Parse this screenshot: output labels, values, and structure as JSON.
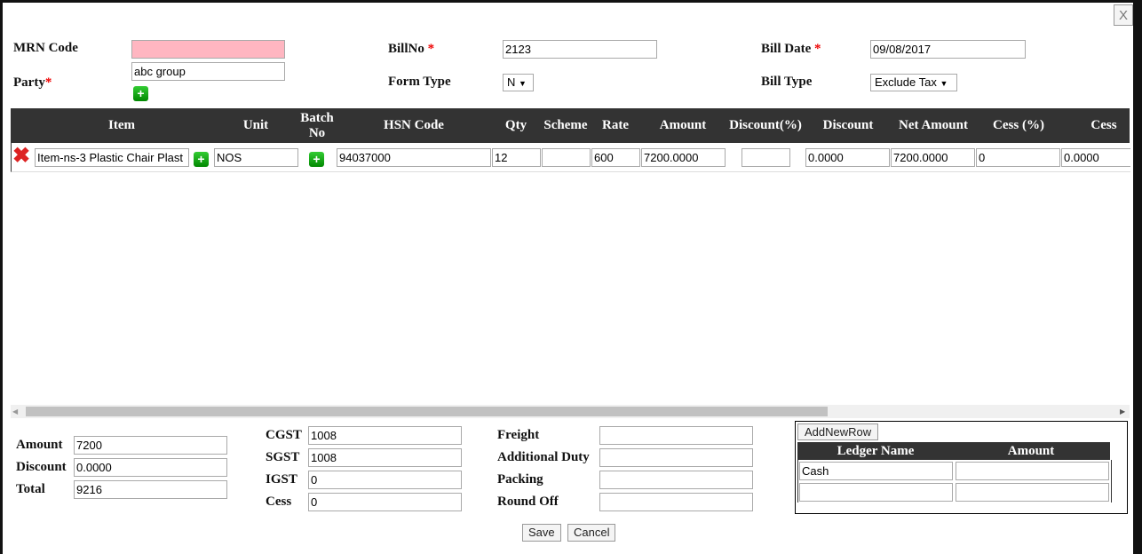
{
  "close_label": "X",
  "header": {
    "mrn_code": {
      "label": "MRN Code",
      "value": ""
    },
    "party": {
      "label": "Party",
      "required": "*",
      "value": "abc group"
    },
    "bill_no": {
      "label": "BillNo",
      "required": "*",
      "value": "2123"
    },
    "form_type": {
      "label": "Form Type",
      "value": "N"
    },
    "bill_date": {
      "label": "Bill Date",
      "required": "*",
      "value": "09/08/2017"
    },
    "bill_type": {
      "label": "Bill Type",
      "value": "Exclude Tax"
    }
  },
  "table": {
    "columns": [
      "Item",
      "Unit",
      "Batch No",
      "HSN Code",
      "Qty",
      "Scheme",
      "Rate",
      "Amount",
      "Discount(%)",
      "Discount",
      "Net Amount",
      "Cess (%)",
      "Cess"
    ],
    "rows": [
      {
        "item": "Item-ns-3 Plastic Chair Plast",
        "unit": "NOS",
        "batch_no": "",
        "hsn": "94037000",
        "qty": "12",
        "scheme": "",
        "rate": "600",
        "amount": "7200.0000",
        "discount_pct": "",
        "discount": "0.0000",
        "net_amount": "7200.0000",
        "cess_pct": "0",
        "cess": "0.0000"
      }
    ]
  },
  "totals": {
    "amount": {
      "label": "Amount",
      "value": "7200"
    },
    "discount": {
      "label": "Discount",
      "value": "0.0000"
    },
    "total": {
      "label": "Total",
      "value": "9216"
    }
  },
  "taxes": {
    "cgst": {
      "label": "CGST",
      "value": "1008"
    },
    "sgst": {
      "label": "SGST",
      "value": "1008"
    },
    "igst": {
      "label": "IGST",
      "value": "0"
    },
    "cess": {
      "label": "Cess",
      "value": "0"
    }
  },
  "charges": {
    "freight": {
      "label": "Freight",
      "value": ""
    },
    "additional_duty": {
      "label": "Additional Duty",
      "value": ""
    },
    "packing": {
      "label": "Packing",
      "value": ""
    },
    "round_off": {
      "label": "Round Off",
      "value": ""
    }
  },
  "ledger": {
    "add_row_label": "AddNewRow",
    "columns": [
      "Ledger Name",
      "Amount"
    ],
    "rows": [
      {
        "name": "Cash",
        "amount": ""
      },
      {
        "name": "",
        "amount": ""
      }
    ]
  },
  "actions": {
    "save": "Save",
    "cancel": "Cancel"
  }
}
